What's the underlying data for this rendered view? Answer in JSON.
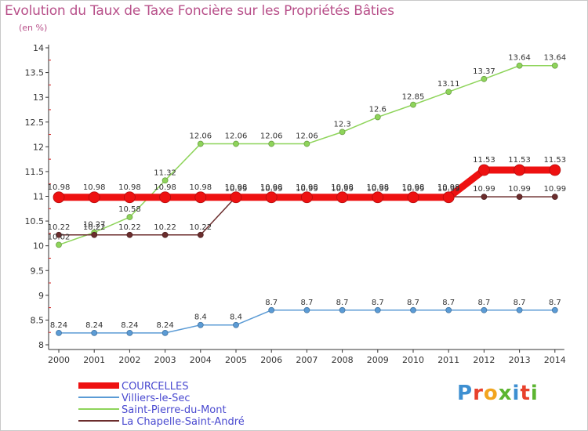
{
  "header": {
    "title": "Evolution du Taux de Taxe Foncière sur les Propriétés Bâties",
    "unit": "(en %)"
  },
  "logo": {
    "text": "Proxiti",
    "colors": [
      "#3d8fd1",
      "#e8412c",
      "#f2a51f",
      "#5cb531",
      "#3d8fd1",
      "#e8412c",
      "#5cb531"
    ]
  },
  "chart_data": {
    "type": "line",
    "title": "Evolution du Taux de Taxe Foncière sur les Propriétés Bâties",
    "ylabel": "(en %)",
    "xlabel": "",
    "ylim": [
      8,
      14
    ],
    "yticks": [
      8,
      8.5,
      9,
      9.5,
      10,
      10.5,
      11,
      11.5,
      12,
      12.5,
      13,
      13.5,
      14
    ],
    "ytick_labels": [
      "8",
      "8.5",
      "9",
      "9.5",
      "10",
      "10.5",
      "11",
      "11.5",
      "12",
      "12.5",
      "13",
      "13.5",
      "14"
    ],
    "grid": false,
    "legend_position": "bottom-left",
    "x": [
      "2000",
      "2001",
      "2002",
      "2003",
      "2004",
      "2005",
      "2006",
      "2007",
      "2008",
      "2009",
      "2010",
      "2011",
      "2012",
      "2013",
      "2014"
    ],
    "series": [
      {
        "name": "Villiers-le-Sec",
        "color": "#5b9bd5",
        "values": [
          8.24,
          8.24,
          8.24,
          8.24,
          8.4,
          8.4,
          8.7,
          8.7,
          8.7,
          8.7,
          8.7,
          8.7,
          8.7,
          8.7,
          8.7
        ],
        "labels": [
          "8.24",
          "8.24",
          "8.24",
          "8.24",
          "8.4",
          "8.4",
          "8.7",
          "8.7",
          "8.7",
          "8.7",
          "8.7",
          "8.7",
          "8.7",
          "8.7",
          "8.7"
        ]
      },
      {
        "name": "Saint-Pierre-du-Mont",
        "color": "#8ed45a",
        "values": [
          10.02,
          10.27,
          10.58,
          11.32,
          12.06,
          12.06,
          12.06,
          12.06,
          12.3,
          12.6,
          12.85,
          13.11,
          13.37,
          13.64,
          13.64
        ],
        "labels": [
          "10.02",
          "10.27",
          "10.58",
          "11.32",
          "12.06",
          "12.06",
          "12.06",
          "12.06",
          "12.3",
          "12.6",
          "12.85",
          "13.11",
          "13.37",
          "13.64",
          "13.64"
        ]
      },
      {
        "name": "La Chapelle-Saint-André",
        "color": "#6b2d2d",
        "values": [
          10.22,
          10.22,
          10.22,
          10.22,
          10.22,
          10.99,
          10.99,
          10.99,
          10.99,
          10.99,
          10.99,
          10.99,
          10.99,
          10.99,
          10.99
        ],
        "labels": [
          "10.22",
          "10.22",
          "10.22",
          "10.22",
          "10.22",
          "10.99",
          "10.99",
          "10.99",
          "10.99",
          "10.99",
          "10.99",
          "10.99",
          "10.99",
          "10.99",
          "10.99"
        ]
      },
      {
        "name": "COURCELLES",
        "color": "#ee1111",
        "values": [
          10.98,
          10.98,
          10.98,
          10.98,
          10.98,
          10.98,
          10.98,
          10.98,
          10.98,
          10.98,
          10.98,
          10.98,
          11.53,
          11.53,
          11.53
        ],
        "labels": [
          "10.98",
          "10.98",
          "10.98",
          "10.98",
          "10.98",
          "10.98",
          "10.98",
          "10.98",
          "10.98",
          "10.98",
          "10.98",
          "10.98",
          "11.53",
          "11.53",
          "11.53"
        ]
      }
    ],
    "legend": [
      "COURCELLES",
      "Villiers-le-Sec",
      "Saint-Pierre-du-Mont",
      "La Chapelle-Saint-André"
    ]
  }
}
